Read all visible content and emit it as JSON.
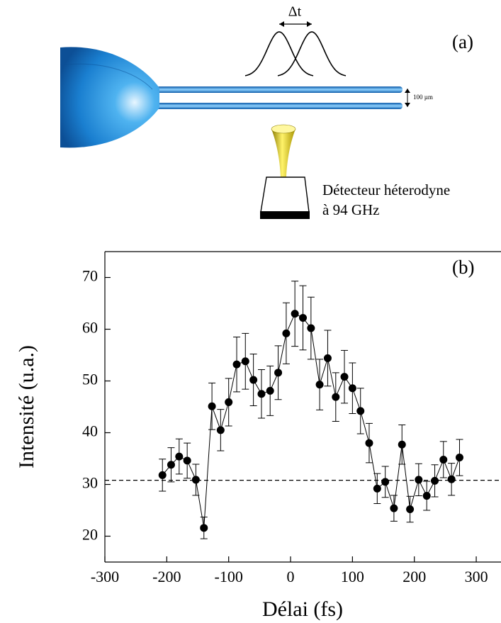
{
  "diagram": {
    "panel_label": "(a)",
    "delay_label": "Δt",
    "scale_label": "100 µm",
    "detector_line1": "Détecteur héterodyne",
    "detector_line2": "à 94 GHz"
  },
  "chart_data": {
    "type": "scatter",
    "panel_label": "(b)",
    "x_label": "Délai (fs)",
    "y_label": "Intensité (u.a.)",
    "xlim": [
      -300,
      340
    ],
    "ylim": [
      15,
      75
    ],
    "xticks": [
      -300,
      -200,
      -100,
      0,
      100,
      200,
      300
    ],
    "yticks": [
      20,
      30,
      40,
      50,
      60,
      70
    ],
    "baseline": 30.8,
    "series": [
      {
        "color": "#000000",
        "x": [
          -207,
          -193,
          -180,
          -167,
          -153,
          -140,
          -127,
          -113,
          -100,
          -87,
          -73,
          -60,
          -47,
          -33,
          -20,
          -7,
          7,
          20,
          33,
          47,
          60,
          73,
          87,
          100,
          113,
          127,
          140,
          153,
          167,
          180,
          193,
          207,
          220,
          233,
          247,
          260,
          273
        ],
        "values": [
          31.8,
          33.8,
          35.4,
          34.6,
          30.9,
          21.6,
          45.1,
          40.5,
          45.9,
          53.2,
          53.8,
          50.2,
          47.5,
          48.1,
          51.6,
          59.2,
          63.0,
          62.2,
          60.2,
          49.3,
          54.4,
          46.9,
          50.8,
          48.6,
          44.2,
          38.0,
          29.2,
          30.5,
          25.4,
          37.7,
          25.2,
          30.9,
          27.8,
          30.7,
          34.8,
          31.0,
          35.2
        ],
        "errors": [
          3.1,
          3.3,
          3.4,
          3.4,
          3.0,
          2.1,
          4.5,
          4.0,
          4.6,
          5.3,
          5.4,
          5.0,
          4.7,
          4.8,
          5.2,
          5.9,
          6.3,
          6.2,
          6.0,
          4.9,
          5.4,
          4.7,
          5.1,
          4.9,
          4.4,
          3.8,
          2.9,
          3.0,
          2.5,
          3.8,
          2.5,
          3.1,
          2.8,
          3.1,
          3.5,
          3.1,
          3.5
        ]
      }
    ]
  }
}
